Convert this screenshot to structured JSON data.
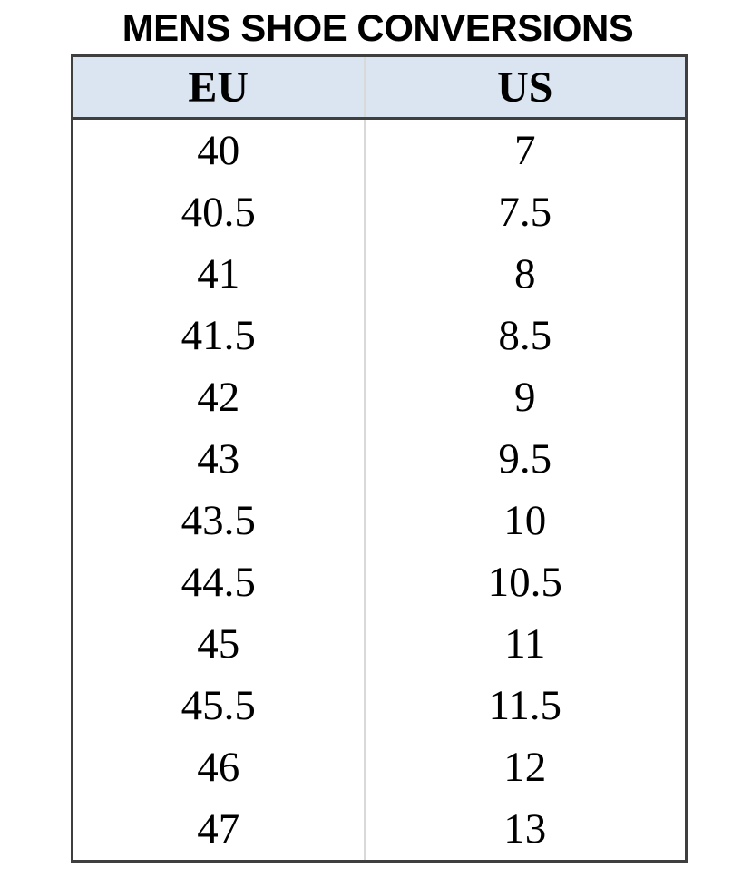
{
  "title": "MENS SHOE CONVERSIONS",
  "table": {
    "columns": [
      "EU",
      "US"
    ],
    "rows": [
      [
        "40",
        "7"
      ],
      [
        "40.5",
        "7.5"
      ],
      [
        "41",
        "8"
      ],
      [
        "41.5",
        "8.5"
      ],
      [
        "42",
        "9"
      ],
      [
        "43",
        "9.5"
      ],
      [
        "43.5",
        "10"
      ],
      [
        "44.5",
        "10.5"
      ],
      [
        "45",
        "11"
      ],
      [
        "45.5",
        "11.5"
      ],
      [
        "46",
        "12"
      ],
      [
        "47",
        "13"
      ]
    ]
  },
  "colors": {
    "header_bg": "#dbe5f1",
    "outer_border": "#3f3f3f",
    "inner_divider": "#d9d9d9",
    "text": "#000000"
  }
}
